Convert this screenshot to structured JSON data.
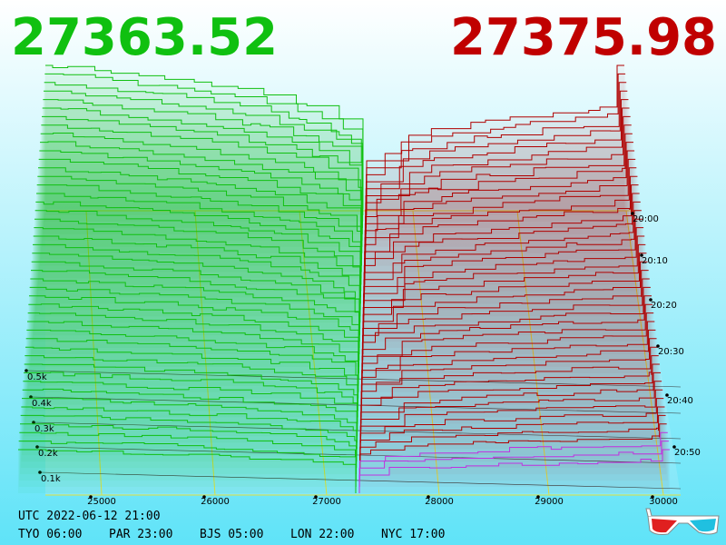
{
  "bid_price": "27363.52",
  "ask_price": "27375.98",
  "depth_labels": [
    "0.5k",
    "0.4k",
    "0.3k",
    "0.2k",
    "0.1k"
  ],
  "price_labels": [
    "25000",
    "26000",
    "27000",
    "28000",
    "29000",
    "30000"
  ],
  "time_labels": [
    "20:00",
    "20:10",
    "20:20",
    "20:30",
    "20:40",
    "20:50"
  ],
  "utc_time": "UTC 2022-06-12 21:00",
  "city_times": [
    "TYO 06:00",
    "PAR 23:00",
    "BJS 05:00",
    "LON 22:00",
    "NYC 17:00"
  ]
}
